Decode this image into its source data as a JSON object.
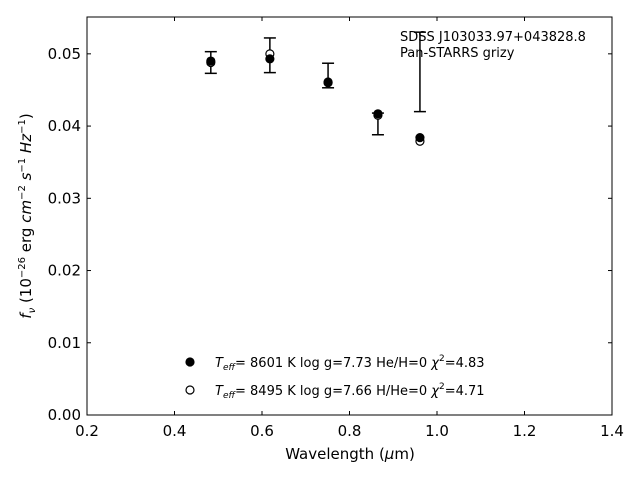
{
  "chart_data": {
    "type": "scatter",
    "title": "",
    "xlabel": "Wavelength (μm)",
    "xlabel_main": "Wavelength (",
    "xlabel_mu": "μ",
    "xlabel_end": "m)",
    "ylabel": "f_ν (10^-26 erg cm^-2 s^-1 Hz^-1)",
    "xlim": [
      0.2,
      1.4
    ],
    "ylim": [
      0.0,
      0.0551
    ],
    "xticks": [
      0.2,
      0.4,
      0.6,
      0.8,
      1.0,
      1.2,
      1.4
    ],
    "xtick_labels": [
      "0.2",
      "0.4",
      "0.6",
      "0.8",
      "1.0",
      "1.2",
      "1.4"
    ],
    "yticks": [
      0.0,
      0.01,
      0.02,
      0.03,
      0.04,
      0.05
    ],
    "ytick_labels": [
      "0.00",
      "0.01",
      "0.02",
      "0.03",
      "0.04",
      "0.05"
    ],
    "annotation": [
      "SDSS J103033.97+043828.8",
      "Pan-STARRS grizy"
    ],
    "observed": {
      "x": [
        0.483,
        0.618,
        0.751,
        0.865,
        0.961
      ],
      "y": [
        0.0488,
        0.0498,
        0.047,
        0.0403,
        0.0475
      ],
      "err": [
        0.0015,
        0.0024,
        0.0017,
        0.0015,
        0.0055
      ]
    },
    "series": [
      {
        "name": "filled",
        "marker": "filled-circle",
        "x": [
          0.483,
          0.618,
          0.751,
          0.865,
          0.961
        ],
        "y": [
          0.049,
          0.0493,
          0.0461,
          0.0417,
          0.0384
        ],
        "legend": {
          "teff": "8601 K",
          "logg": "log g=7.73",
          "comp": "He/H=0",
          "chi2": "=4.83"
        }
      },
      {
        "name": "open",
        "marker": "open-circle",
        "x": [
          0.483,
          0.618,
          0.751,
          0.865,
          0.961
        ],
        "y": [
          0.0488,
          0.05,
          0.046,
          0.0415,
          0.0379
        ],
        "legend": {
          "teff": "8495 K",
          "logg": "log g=7.66",
          "comp": "H/He=0",
          "chi2": "=4.71"
        }
      }
    ],
    "legend_placement": "bottom-center"
  }
}
